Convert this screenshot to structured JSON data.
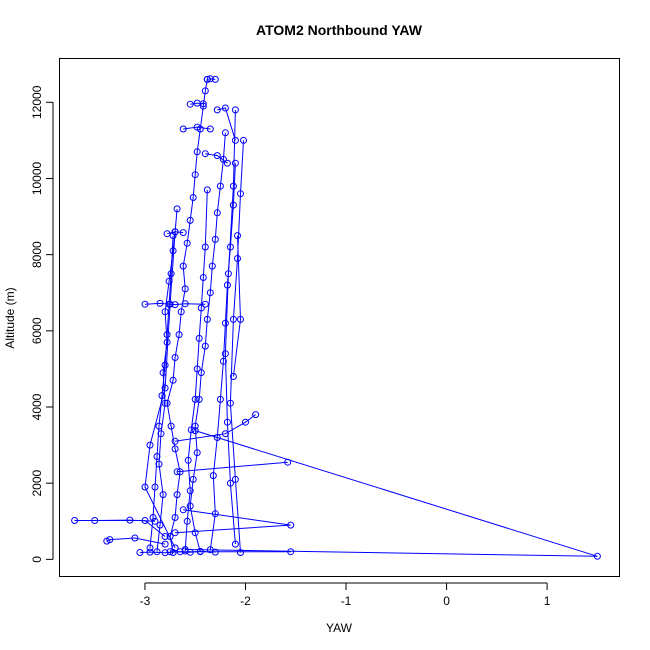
{
  "chart_data": {
    "type": "line",
    "title": "ATOM2 Northbound YAW",
    "xlabel": "YAW",
    "ylabel": "Altitude (m)",
    "xlim": [
      -3.85,
      1.72
    ],
    "ylim": [
      -450,
      13150
    ],
    "x_ticks": [
      -3,
      -2,
      -1,
      0,
      1
    ],
    "y_ticks": [
      0,
      2000,
      4000,
      6000,
      8000,
      10000,
      12000
    ],
    "series_color": "#0000ff",
    "marker": "open-circle",
    "series": [
      {
        "x": [
          -2.72,
          -2.75,
          -2.7,
          -2.68,
          -2.65,
          -2.7,
          -2.74,
          -2.78,
          -2.72,
          -2.7,
          -2.66,
          -2.64,
          -2.6,
          -2.62,
          -2.58,
          -2.55,
          -2.52,
          -2.5,
          -2.48,
          -2.45,
          -2.42,
          -2.4,
          -2.38
        ],
        "y": [
          180,
          600,
          1100,
          1700,
          2300,
          2900,
          3500,
          4100,
          4700,
          5300,
          5900,
          6500,
          7100,
          7700,
          8300,
          8900,
          9500,
          10100,
          10700,
          11300,
          11900,
          12300,
          12600
        ]
      },
      {
        "x": [
          -2.45,
          -2.5,
          -2.55,
          -2.52,
          -2.48,
          -2.5,
          -2.46,
          -2.44,
          -2.4,
          -2.38,
          -2.35,
          -2.33,
          -2.3,
          -2.28,
          -2.25,
          -2.22,
          -2.2
        ],
        "y": [
          200,
          700,
          1400,
          2100,
          2800,
          3500,
          4200,
          4900,
          5600,
          6300,
          7000,
          7700,
          8400,
          9100,
          9800,
          10500,
          11200
        ]
      },
      {
        "x": [
          -2.88,
          -2.85,
          -2.82,
          -2.86,
          -2.84,
          -2.8,
          -2.82,
          -2.78,
          -2.8,
          -2.76,
          -2.72,
          -2.7,
          -2.68
        ],
        "y": [
          200,
          900,
          1700,
          2500,
          3300,
          4100,
          4900,
          5700,
          6500,
          7300,
          8100,
          8600,
          9200
        ]
      },
      {
        "x": [
          -2.35,
          -2.3,
          -2.32,
          -2.28,
          -2.25,
          -2.22,
          -2.2,
          -2.18,
          -2.15,
          -2.12,
          -2.1
        ],
        "y": [
          250,
          1200,
          2200,
          3200,
          4200,
          5200,
          6200,
          7200,
          8200,
          9300,
          10400
        ]
      },
      {
        "x": [
          -2.95,
          -2.92,
          -2.9,
          -2.88,
          -2.86,
          -2.83,
          -2.8,
          -2.78,
          -2.76,
          -2.74,
          -2.72
        ],
        "y": [
          300,
          1100,
          1900,
          2700,
          3500,
          4300,
          5100,
          5900,
          6700,
          7500,
          8500
        ]
      },
      {
        "x": [
          -2.6,
          -2.58,
          -2.55,
          -2.57,
          -2.54,
          -2.5,
          -2.48,
          -2.46,
          -2.44,
          -2.42,
          -2.4,
          -2.38
        ],
        "y": [
          220,
          1000,
          1800,
          2600,
          3400,
          4200,
          5000,
          5800,
          6600,
          7400,
          8200,
          9700
        ]
      },
      {
        "x": [
          -2.05,
          -2.1,
          -2.15,
          -2.12,
          -2.08,
          -2.05,
          -2.02
        ],
        "y": [
          180,
          2100,
          4100,
          6300,
          7900,
          9600,
          11000
        ]
      },
      {
        "x": [
          -2.1,
          -2.15,
          -2.18,
          -2.2,
          -2.17,
          -2.12,
          -2.1
        ],
        "y": [
          400,
          2000,
          3600,
          5400,
          7500,
          9800,
          11800
        ]
      },
      {
        "x": [
          -2.7,
          -3.0,
          -2.95,
          -2.8,
          -2.75,
          -2.7
        ],
        "y": [
          300,
          1900,
          3000,
          4500,
          6700,
          8600
        ]
      },
      {
        "x": [
          -2.7,
          -2.2,
          -2.0,
          -1.9
        ],
        "y": [
          3100,
          3300,
          3600,
          3800
        ]
      },
      {
        "x": [
          -2.68,
          -1.58
        ],
        "y": [
          2300,
          2550
        ]
      },
      {
        "x": [
          -2.62,
          -1.55,
          -2.7
        ],
        "y": [
          1300,
          900,
          700
        ]
      },
      {
        "x": [
          -3.7,
          -3.0,
          -2.8
        ],
        "y": [
          1020,
          1020,
          600
        ]
      },
      {
        "x": [
          -3.5,
          -3.15,
          -2.9
        ],
        "y": [
          1020,
          1030,
          1000
        ]
      },
      {
        "x": [
          -3.38,
          -3.35,
          -3.1,
          -2.8
        ],
        "y": [
          480,
          520,
          560,
          400
        ]
      },
      {
        "x": [
          -2.75,
          -1.55
        ],
        "y": [
          200,
          200
        ]
      },
      {
        "x": [
          -2.5,
          1.5,
          -2.6
        ],
        "y": [
          3380,
          80,
          260
        ]
      },
      {
        "x": [
          -3.05,
          -2.95,
          -2.8,
          -2.65,
          -2.55,
          -2.45,
          -2.3
        ],
        "y": [
          180,
          190,
          175,
          200,
          185,
          210,
          190
        ]
      },
      {
        "x": [
          -3.0,
          -2.85,
          -2.7,
          -2.6,
          -2.4
        ],
        "y": [
          6700,
          6720,
          6690,
          6710,
          6700
        ]
      },
      {
        "x": [
          -2.62,
          -2.48,
          -2.35
        ],
        "y": [
          11300,
          11350,
          11300
        ]
      },
      {
        "x": [
          -2.55,
          -2.48,
          -2.42
        ],
        "y": [
          11950,
          11980,
          11960
        ]
      },
      {
        "x": [
          -2.38,
          -2.35,
          -2.3
        ],
        "y": [
          12600,
          12620,
          12600
        ]
      },
      {
        "x": [
          -2.78,
          -2.7,
          -2.62
        ],
        "y": [
          8550,
          8600,
          8580
        ]
      },
      {
        "x": [
          -2.28,
          -2.2,
          -2.1
        ],
        "y": [
          11800,
          11850,
          11000
        ]
      },
      {
        "x": [
          -2.4,
          -2.28,
          -2.18
        ],
        "y": [
          10650,
          10600,
          10400
        ]
      },
      {
        "x": [
          -2.08,
          -2.05,
          -2.12
        ],
        "y": [
          8500,
          6300,
          4800
        ]
      }
    ]
  }
}
